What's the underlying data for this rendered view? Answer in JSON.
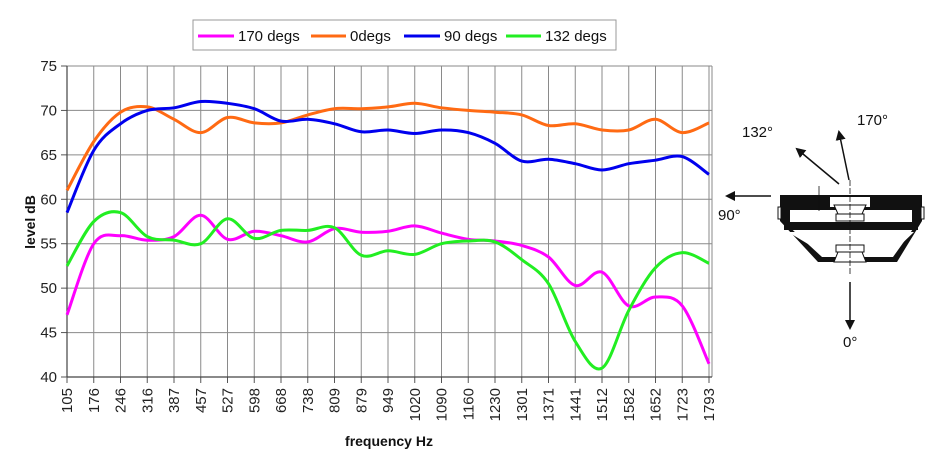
{
  "chart_data": {
    "type": "line",
    "title": "",
    "xlabel": "frequency Hz",
    "ylabel": "level dB",
    "ylim": [
      40,
      75
    ],
    "yticks": [
      40,
      45,
      50,
      55,
      60,
      65,
      70,
      75
    ],
    "grid": true,
    "legend_position": "top-center",
    "categories": [
      "105",
      "176",
      "246",
      "316",
      "387",
      "457",
      "527",
      "598",
      "668",
      "738",
      "809",
      "879",
      "949",
      "1020",
      "1090",
      "1160",
      "1230",
      "1301",
      "1371",
      "1441",
      "1512",
      "1582",
      "1652",
      "1723",
      "1793"
    ],
    "series": [
      {
        "name": "170 degs",
        "color": "#ff00ff",
        "values": [
          47,
          55,
          55.9,
          55.4,
          55.8,
          58.2,
          55.5,
          56.4,
          55.9,
          55.2,
          56.7,
          56.3,
          56.4,
          57,
          56.2,
          55.5,
          55.3,
          54.8,
          53.5,
          50.3,
          51.8,
          48,
          49,
          48,
          41.5
        ]
      },
      {
        "name": "0degs",
        "color": "#ff6a13",
        "values": [
          61,
          66.5,
          69.8,
          70.4,
          69,
          67.5,
          69.2,
          68.6,
          68.6,
          69.5,
          70.2,
          70.2,
          70.4,
          70.8,
          70.3,
          70,
          69.8,
          69.5,
          68.3,
          68.5,
          67.8,
          67.8,
          69,
          67.5,
          68.6
        ]
      },
      {
        "name": "90 degs",
        "color": "#0000ee",
        "values": [
          58.5,
          65.5,
          68.5,
          70,
          70.3,
          71,
          70.8,
          70.2,
          68.8,
          69,
          68.5,
          67.6,
          67.8,
          67.4,
          67.8,
          67.5,
          66.3,
          64.3,
          64.5,
          64,
          63.3,
          64,
          64.4,
          64.8,
          62.8
        ]
      },
      {
        "name": "132 degs",
        "color": "#22ee22",
        "values": [
          52.5,
          57.5,
          58.5,
          55.8,
          55.4,
          55,
          57.8,
          55.6,
          56.5,
          56.5,
          56.8,
          53.7,
          54.2,
          53.8,
          55,
          55.3,
          55.2,
          53.2,
          50.5,
          44,
          41,
          47.5,
          52.3,
          54,
          52.8
        ]
      }
    ]
  },
  "diagram": {
    "labels": {
      "deg170": "170°",
      "deg132": "132°",
      "deg90": "90°",
      "deg0": "0°"
    }
  }
}
